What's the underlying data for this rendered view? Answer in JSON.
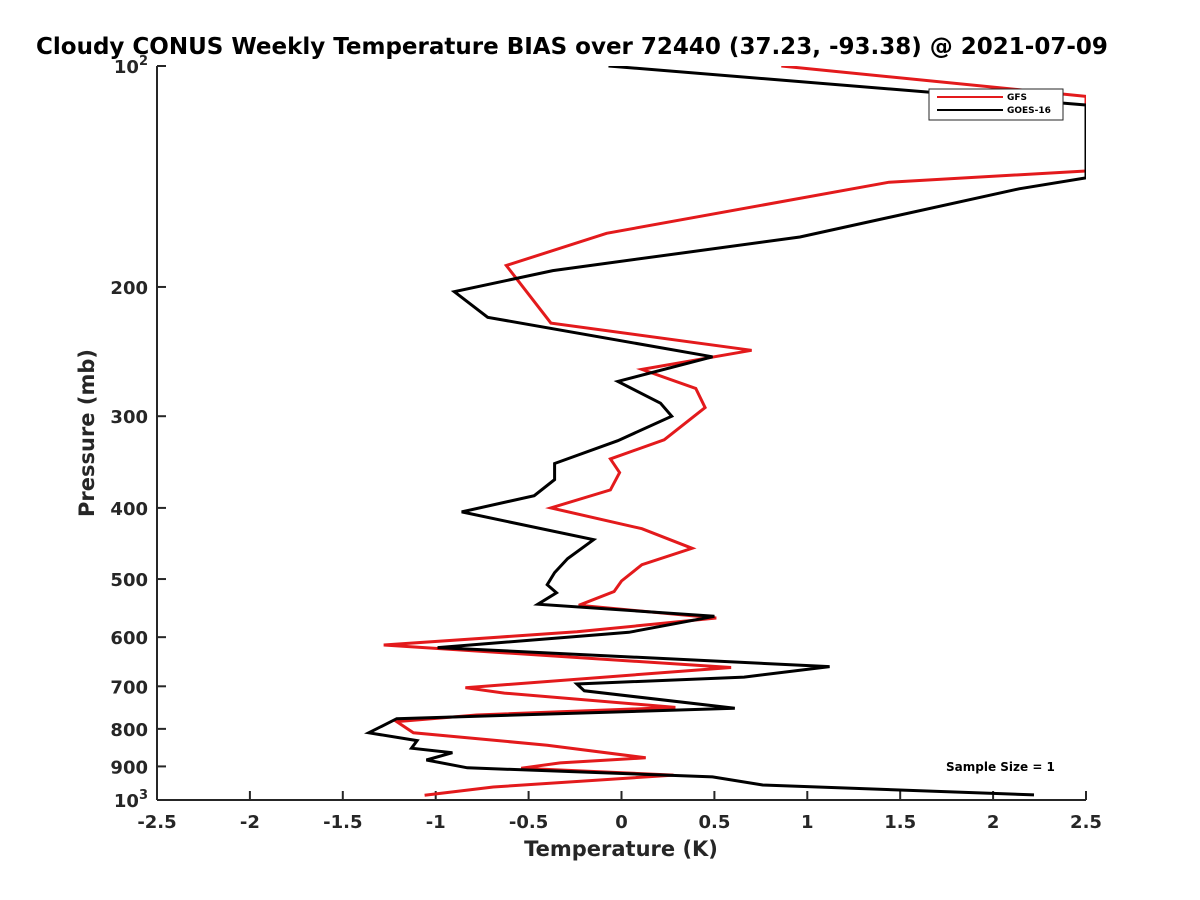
{
  "chart_data": {
    "type": "line",
    "title": "Cloudy CONUS Weekly Temperature BIAS over 72440 (37.23, -93.38) @ 2021-07-09",
    "xlabel": "Temperature (K)",
    "ylabel": "Pressure (mb)",
    "xlim": [
      -2.5,
      2.5
    ],
    "ylim": [
      100,
      1000
    ],
    "y_scale": "log",
    "y_reversed": true,
    "grid": false,
    "legend_position": "top-right",
    "x_ticks": [
      -2.5,
      -2,
      -1.5,
      -1,
      -0.5,
      0,
      0.5,
      1,
      1.5,
      2,
      2.5
    ],
    "x_tick_labels": [
      "-2.5",
      "-2",
      "-1.5",
      "-1",
      "-0.5",
      "0",
      "0.5",
      "1",
      "1.5",
      "2",
      "2.5"
    ],
    "y_ticks": [
      200,
      300,
      400,
      500,
      600,
      700,
      800,
      900
    ],
    "y_tick_labels": [
      "200",
      "300",
      "400",
      "500",
      "600",
      "700",
      "800",
      "900"
    ],
    "y_top_label": {
      "base": "10",
      "exp": "2"
    },
    "y_bottom_label": {
      "base": "10",
      "exp": "3"
    },
    "annotation": "Sample Size = 1",
    "series": [
      {
        "name": "GFS",
        "color": "#e31a1c",
        "points": [
          [
            0.86,
            100
          ],
          [
            2.5,
            110
          ],
          [
            2.5,
            139
          ],
          [
            1.44,
            144
          ],
          [
            -0.08,
            169
          ],
          [
            -0.62,
            187
          ],
          [
            -0.38,
            224
          ],
          [
            0.7,
            244
          ],
          [
            0.11,
            259
          ],
          [
            0.4,
            275
          ],
          [
            0.45,
            292
          ],
          [
            0.23,
            323
          ],
          [
            -0.06,
            343
          ],
          [
            -0.01,
            358
          ],
          [
            -0.06,
            378
          ],
          [
            -0.38,
            400
          ],
          [
            0.11,
            427
          ],
          [
            0.38,
            454
          ],
          [
            0.11,
            478
          ],
          [
            0.0,
            503
          ],
          [
            -0.04,
            520
          ],
          [
            -0.23,
            543
          ],
          [
            0.51,
            565
          ],
          [
            -0.24,
            590
          ],
          [
            -1.28,
            615
          ],
          [
            0.59,
            660
          ],
          [
            -0.84,
            703
          ],
          [
            -0.63,
            715
          ],
          [
            0.29,
            748
          ],
          [
            -0.78,
            766
          ],
          [
            -1.21,
            782
          ],
          [
            -1.12,
            810
          ],
          [
            -0.4,
            842
          ],
          [
            0.13,
            876
          ],
          [
            -0.33,
            890
          ],
          [
            -0.54,
            905
          ],
          [
            0.28,
            925
          ],
          [
            -0.69,
            960
          ],
          [
            -1.06,
            985
          ]
        ]
      },
      {
        "name": "GOES-16",
        "color": "#000000",
        "points": [
          [
            -0.07,
            100
          ],
          [
            2.5,
            113
          ],
          [
            2.5,
            142
          ],
          [
            2.14,
            147
          ],
          [
            0.96,
            171
          ],
          [
            -0.37,
            190
          ],
          [
            -0.9,
            203
          ],
          [
            -0.72,
            220
          ],
          [
            0.49,
            249
          ],
          [
            -0.02,
            269
          ],
          [
            0.21,
            288
          ],
          [
            0.27,
            300
          ],
          [
            -0.02,
            324
          ],
          [
            -0.36,
            348
          ],
          [
            -0.36,
            366
          ],
          [
            -0.47,
            385
          ],
          [
            -0.86,
            405
          ],
          [
            -0.15,
            442
          ],
          [
            -0.29,
            469
          ],
          [
            -0.36,
            490
          ],
          [
            -0.4,
            509
          ],
          [
            -0.35,
            522
          ],
          [
            -0.45,
            541
          ],
          [
            0.5,
            562
          ],
          [
            0.04,
            591
          ],
          [
            -0.99,
            620
          ],
          [
            1.12,
            658
          ],
          [
            0.66,
            680
          ],
          [
            -0.24,
            695
          ],
          [
            -0.2,
            710
          ],
          [
            0.61,
            750
          ],
          [
            -1.21,
            775
          ],
          [
            -1.36,
            810
          ],
          [
            -1.1,
            830
          ],
          [
            -1.13,
            850
          ],
          [
            -0.91,
            862
          ],
          [
            -1.05,
            882
          ],
          [
            -0.83,
            904
          ],
          [
            0.49,
            930
          ],
          [
            0.76,
            954
          ],
          [
            2.22,
            984
          ]
        ]
      }
    ]
  }
}
